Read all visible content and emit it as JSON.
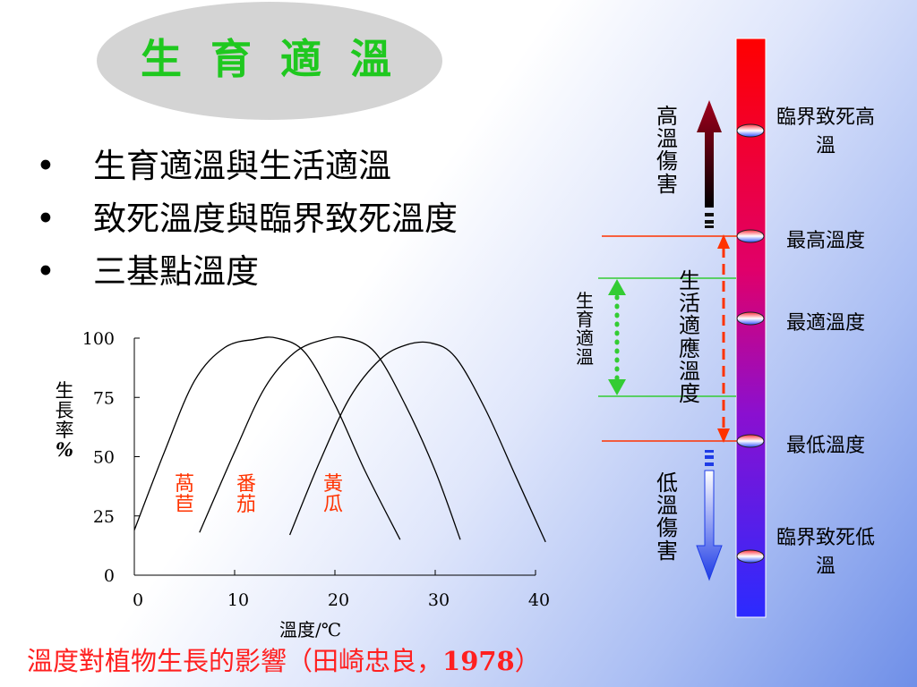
{
  "title": "生 育 適 溫",
  "bullets": [
    "生育適溫與生活適溫",
    "致死溫度與臨界致死溫度",
    "三基點溫度"
  ],
  "chart_data": {
    "type": "line",
    "xlabel": "溫度/℃",
    "ylabel": "生長率%",
    "xlim": [
      0,
      40
    ],
    "ylim": [
      0,
      100
    ],
    "x_ticks": [
      "0",
      "10",
      "20",
      "30",
      "40"
    ],
    "y_ticks": [
      "0",
      "25",
      "50",
      "75",
      "100"
    ],
    "series": [
      {
        "name": "萵苣",
        "x": [
          0,
          3,
          6,
          9,
          12,
          14.2,
          17,
          20,
          23,
          26.5
        ],
        "y": [
          19,
          52,
          82,
          96,
          99.5,
          100,
          94,
          72,
          44,
          15
        ]
      },
      {
        "name": "番茄",
        "x": [
          6.5,
          10,
          13,
          16,
          19,
          21.2,
          24,
          27,
          30,
          32.5
        ],
        "y": [
          18,
          52,
          79,
          94,
          99.5,
          100,
          94,
          72,
          44,
          15
        ]
      },
      {
        "name": "黃瓜",
        "x": [
          15.5,
          18.5,
          21.5,
          24.5,
          27,
          29.5,
          32,
          35,
          38,
          41
        ],
        "y": [
          17,
          48,
          75,
          91,
          97,
          98,
          92,
          70,
          42,
          14
        ]
      }
    ]
  },
  "chart_labels": {
    "lettuce": "萵苣",
    "tomato": "番茄",
    "cucumber": "黃瓜",
    "ylabel_main": "生長率",
    "ylabel_unit": "%"
  },
  "diagram": {
    "high_damage": "高溫傷害",
    "low_damage": "低溫傷害",
    "growth_optimal": "生育適溫",
    "living_range": "生活適應溫度",
    "labels": {
      "critical_high": "臨界致死高溫",
      "max_temp": "最高溫度",
      "optimal_temp": "最適溫度",
      "min_temp": "最低溫度",
      "critical_low": "臨界致死低溫"
    },
    "colors": {
      "top": "#ff0000",
      "bottom": "#2b2bff",
      "green": "#33cc33",
      "orange": "#ff3300",
      "darkred": "#8b0015",
      "blue": "#1e3ce6"
    }
  },
  "caption": "溫度對植物生長的影響（田崎忠良，1978）"
}
